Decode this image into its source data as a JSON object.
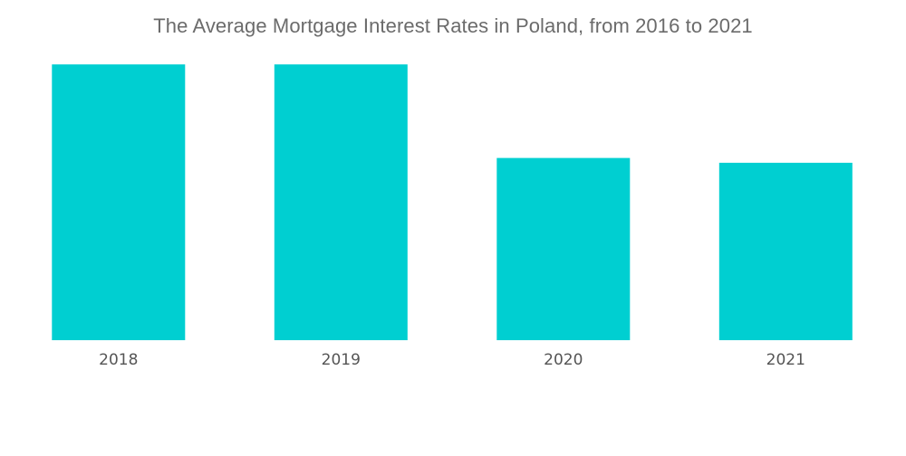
{
  "chart_data": {
    "type": "bar",
    "title": "The Average Mortgage Interest Rates in Poland, from 2016 to 2021",
    "xlabel": "",
    "ylabel": "",
    "categories": [
      "2018",
      "2019",
      "2020",
      "2021"
    ],
    "values": [
      4.54,
      4.54,
      3.0,
      2.92
    ],
    "ylim": [
      0,
      5.6
    ],
    "grid": false,
    "legend": "none",
    "colors": {
      "bar": "#00cfd1",
      "title": "#6b6b6b",
      "tick_label": "#555555"
    }
  }
}
